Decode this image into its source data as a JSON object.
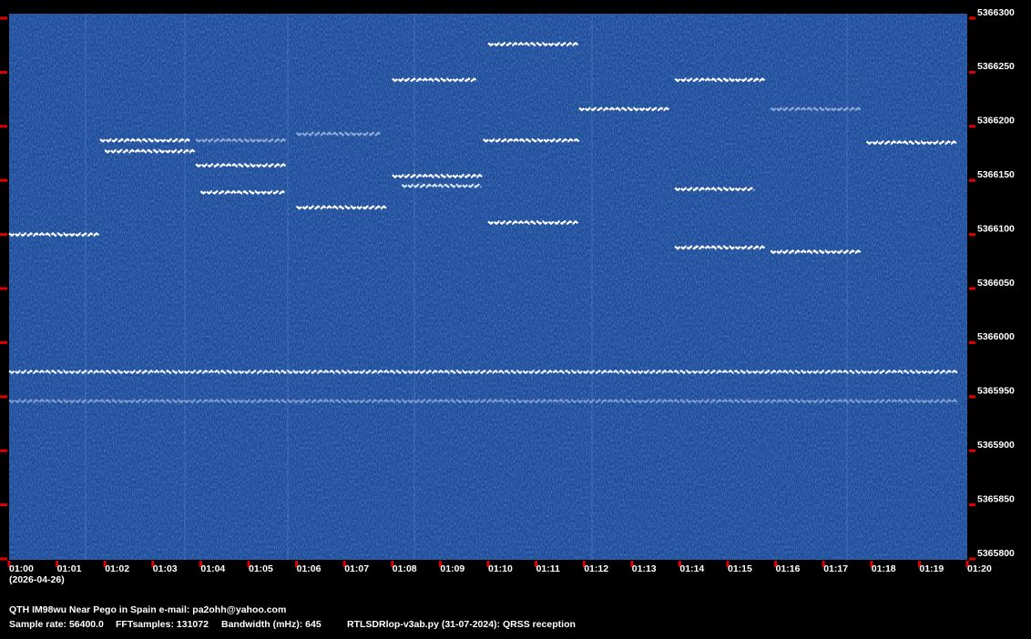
{
  "chart_data": {
    "type": "spectrogram",
    "date": "(2026-04-26)",
    "footer": {
      "station": "QTH IM98wu Near Pego in Spain   e-mail: pa2ohh@yahoo.com",
      "sample_rate": "Sample rate: 56400.0",
      "fft_samples": "FFTsamples: 131072",
      "bandwidth": "Bandwidth (mHz): 645",
      "software": "RTLSDRlop-v3ab.py (31-07-2024): QRSS reception"
    },
    "xlim": [
      0,
      20
    ],
    "xticks": [
      {
        "value": 0,
        "label": "01:00"
      },
      {
        "value": 1,
        "label": "01:01"
      },
      {
        "value": 2,
        "label": "01:02"
      },
      {
        "value": 3,
        "label": "01:03"
      },
      {
        "value": 4,
        "label": "01:04"
      },
      {
        "value": 5,
        "label": "01:05"
      },
      {
        "value": 6,
        "label": "01:06"
      },
      {
        "value": 7,
        "label": "01:07"
      },
      {
        "value": 8,
        "label": "01:08"
      },
      {
        "value": 9,
        "label": "01:09"
      },
      {
        "value": 10,
        "label": "01:10"
      },
      {
        "value": 11,
        "label": "01:11"
      },
      {
        "value": 12,
        "label": "01:12"
      },
      {
        "value": 13,
        "label": "01:13"
      },
      {
        "value": 14,
        "label": "01:14"
      },
      {
        "value": 15,
        "label": "01:15"
      },
      {
        "value": 16,
        "label": "01:16"
      },
      {
        "value": 17,
        "label": "01:17"
      },
      {
        "value": 18,
        "label": "01:18"
      },
      {
        "value": 19,
        "label": "01:19"
      },
      {
        "value": 20,
        "label": "01:20"
      }
    ],
    "ylim": [
      5365800,
      5366300
    ],
    "yticks": [
      5365800,
      5365850,
      5365900,
      5365950,
      5366000,
      5366050,
      5366100,
      5366150,
      5366200,
      5366250,
      5366300
    ],
    "signals": [
      {
        "x": [
          0.0,
          1.9
        ],
        "y": 5366100,
        "color": "#ffffff"
      },
      {
        "x": [
          1.9,
          3.8
        ],
        "y": 5366187,
        "color": "#ffffff"
      },
      {
        "x": [
          2.0,
          3.9
        ],
        "y": 5366177,
        "color": "#ffffff"
      },
      {
        "x": [
          3.9,
          5.8
        ],
        "y": 5366187,
        "color": "#8fa9d6"
      },
      {
        "x": [
          3.9,
          5.8
        ],
        "y": 5366164,
        "color": "#ffffff"
      },
      {
        "x": [
          4.0,
          5.8
        ],
        "y": 5366139,
        "color": "#ffffff"
      },
      {
        "x": [
          6.0,
          7.8
        ],
        "y": 5366193,
        "color": "#8fa9d6"
      },
      {
        "x": [
          6.0,
          7.9
        ],
        "y": 5366125,
        "color": "#ffffff"
      },
      {
        "x": [
          8.0,
          9.8
        ],
        "y": 5366243,
        "color": "#ffffff"
      },
      {
        "x": [
          8.0,
          9.9
        ],
        "y": 5366154,
        "color": "#ffffff"
      },
      {
        "x": [
          8.2,
          9.9
        ],
        "y": 5366145,
        "color": "#d8e4f8"
      },
      {
        "x": [
          10.0,
          11.9
        ],
        "y": 5366276,
        "color": "#ffffff"
      },
      {
        "x": [
          9.9,
          11.9
        ],
        "y": 5366187,
        "color": "#ffffff"
      },
      {
        "x": [
          10.0,
          11.9
        ],
        "y": 5366111,
        "color": "#ffffff"
      },
      {
        "x": [
          11.9,
          13.8
        ],
        "y": 5366216,
        "color": "#ffffff"
      },
      {
        "x": [
          13.9,
          15.8
        ],
        "y": 5366243,
        "color": "#ffffff"
      },
      {
        "x": [
          13.9,
          15.6
        ],
        "y": 5366142,
        "color": "#ffffff"
      },
      {
        "x": [
          13.9,
          15.8
        ],
        "y": 5366088,
        "color": "#ffffff"
      },
      {
        "x": [
          15.9,
          17.8
        ],
        "y": 5366216,
        "color": "#8fa9d6"
      },
      {
        "x": [
          15.9,
          17.8
        ],
        "y": 5366084,
        "color": "#ffffff"
      },
      {
        "x": [
          17.9,
          19.8
        ],
        "y": 5366185,
        "color": "#ffffff"
      },
      {
        "x": [
          0.0,
          19.8
        ],
        "y": 5365973,
        "color": "#e8f0ff"
      },
      {
        "x": [
          0.0,
          19.8
        ],
        "y": 5365946,
        "color": "#7f9cd0"
      }
    ]
  }
}
